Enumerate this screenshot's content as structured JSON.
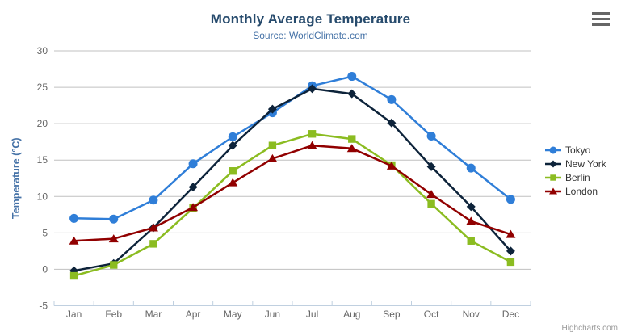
{
  "header": {
    "title": "Monthly Average Temperature",
    "subtitle": "Source: WorldClimate.com",
    "menu_icon": "hamburger-menu-icon"
  },
  "credits": {
    "label": "Highcharts.com"
  },
  "chart_data": {
    "type": "line",
    "title": "Monthly Average Temperature",
    "subtitle": "Source: WorldClimate.com",
    "categories": [
      "Jan",
      "Feb",
      "Mar",
      "Apr",
      "May",
      "Jun",
      "Jul",
      "Aug",
      "Sep",
      "Oct",
      "Nov",
      "Dec"
    ],
    "xlabel": "",
    "ylabel": "Temperature (°C)",
    "ylim": [
      -5,
      30
    ],
    "yticks": [
      -5,
      0,
      5,
      10,
      15,
      20,
      25,
      30
    ],
    "grid": true,
    "legend_position": "right",
    "series": [
      {
        "name": "Tokyo",
        "color": "#2f7ed8",
        "marker": "circle",
        "values": [
          7.0,
          6.9,
          9.5,
          14.5,
          18.2,
          21.5,
          25.2,
          26.5,
          23.3,
          18.3,
          13.9,
          9.6
        ]
      },
      {
        "name": "New York",
        "color": "#0d233a",
        "marker": "diamond",
        "values": [
          -0.2,
          0.8,
          5.7,
          11.3,
          17.0,
          22.0,
          24.8,
          24.1,
          20.1,
          14.1,
          8.6,
          2.5
        ]
      },
      {
        "name": "Berlin",
        "color": "#8bbc21",
        "marker": "square",
        "values": [
          -0.9,
          0.6,
          3.5,
          8.4,
          13.5,
          17.0,
          18.6,
          17.9,
          14.3,
          9.0,
          3.9,
          1.0
        ]
      },
      {
        "name": "London",
        "color": "#910000",
        "marker": "triangle",
        "values": [
          3.9,
          4.2,
          5.7,
          8.5,
          11.9,
          15.2,
          17.0,
          16.6,
          14.2,
          10.3,
          6.6,
          4.8
        ]
      }
    ]
  },
  "colors": {
    "title": "#274b6d",
    "subtitle": "#4572a7",
    "axis_title": "#4572a7",
    "tick_label": "#666666",
    "grid_line": "#c0c0c0",
    "axis_line": "#c0d0e0",
    "legend_text": "#333333",
    "credits_text": "#999999",
    "menu_icon": "#666666",
    "background": "#ffffff"
  }
}
